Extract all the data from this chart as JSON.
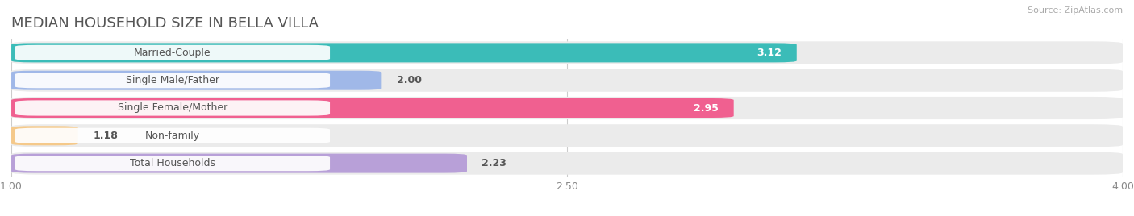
{
  "title": "MEDIAN HOUSEHOLD SIZE IN BELLA VILLA",
  "source": "Source: ZipAtlas.com",
  "categories": [
    "Married-Couple",
    "Single Male/Father",
    "Single Female/Mother",
    "Non-family",
    "Total Households"
  ],
  "values": [
    3.12,
    2.0,
    2.95,
    1.18,
    2.23
  ],
  "bar_colors": [
    "#3bbcb8",
    "#a0b8e8",
    "#f06090",
    "#f5c98a",
    "#b8a0d8"
  ],
  "xmin": 1.0,
  "xmax": 4.0,
  "xticks": [
    1.0,
    2.5,
    4.0
  ],
  "background_color": "#ffffff",
  "bar_row_bg_color": "#ebebeb",
  "label_pill_color": "#ffffff",
  "title_fontsize": 13,
  "label_fontsize": 9,
  "value_fontsize": 9,
  "source_fontsize": 8,
  "tick_fontsize": 9
}
